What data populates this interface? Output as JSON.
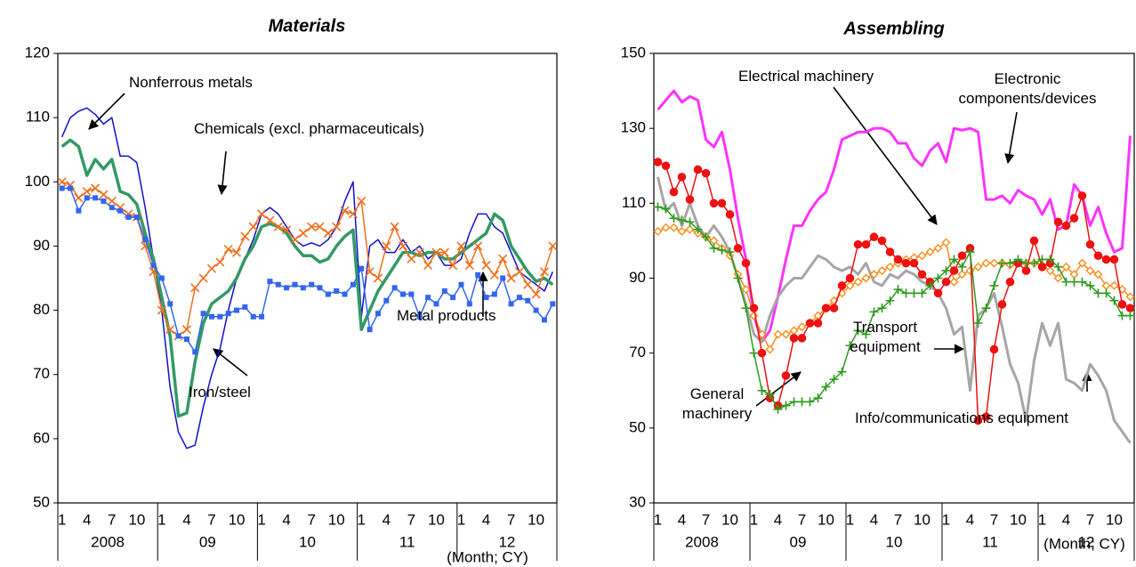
{
  "chart_data": [
    {
      "type": "line",
      "title": "Materials",
      "categories": [
        "1",
        null,
        null,
        "4",
        null,
        null,
        "7",
        null,
        null,
        "10",
        null,
        null,
        "1",
        null,
        null,
        "4",
        null,
        null,
        "7",
        null,
        null,
        "10",
        null,
        null,
        "1",
        null,
        null,
        "4",
        null,
        null,
        "7",
        null,
        null,
        "10",
        null,
        null,
        "1",
        null,
        null,
        "4",
        null,
        null,
        "7",
        null,
        null,
        "10",
        null,
        null,
        "1",
        null,
        null,
        "4",
        null,
        null,
        "7",
        null,
        null,
        "10",
        null,
        null
      ],
      "year_labels": [
        "2008",
        "09",
        "10",
        "11",
        "12"
      ],
      "note": "(Month; CY)",
      "ylim": [
        50,
        120
      ],
      "yticks": [
        50,
        60,
        70,
        80,
        90,
        100,
        110,
        120
      ],
      "series": [
        {
          "name": "Iron/steel",
          "color": "#1010cc",
          "line_width": 1.5,
          "marker": "none",
          "values": [
            107,
            110,
            111,
            111.5,
            110.5,
            109,
            110,
            104,
            104,
            103,
            96,
            88,
            80,
            68,
            61,
            58.5,
            59,
            65,
            70,
            74,
            80,
            85,
            88,
            91,
            95,
            96,
            95,
            93,
            91,
            90,
            90.5,
            90,
            91,
            93,
            97,
            100,
            79,
            90,
            91,
            89,
            89,
            91,
            89,
            90,
            88,
            89,
            87,
            87,
            88,
            92,
            95,
            95,
            93,
            92,
            89,
            86,
            85,
            84,
            83,
            86
          ]
        },
        {
          "name": "Nonferrous metals",
          "color": "#339966",
          "line_width": 3.5,
          "marker": "none",
          "values": [
            105.5,
            106.5,
            105.5,
            101,
            103.5,
            102,
            103.5,
            98.5,
            98,
            96.5,
            92,
            88,
            82,
            76,
            63.5,
            64,
            72,
            78,
            81,
            82,
            83,
            85,
            88,
            90,
            93,
            93.5,
            93,
            92,
            90,
            88.5,
            88.5,
            87.5,
            88,
            90,
            91.5,
            92.5,
            77,
            80,
            83,
            85,
            87,
            89,
            89,
            88.5,
            89,
            89,
            88,
            88,
            89,
            90,
            91,
            92,
            95,
            94,
            90,
            88,
            86,
            84.5,
            85,
            84
          ]
        },
        {
          "name": "Chemicals (excl. pharmaceuticals)",
          "color": "#f07020",
          "line_width": 1.5,
          "marker": "x",
          "values": [
            100,
            99.5,
            97.5,
            98.5,
            99,
            98,
            97,
            96,
            95,
            94.5,
            90,
            86,
            80,
            77,
            76,
            77,
            83.5,
            85,
            86.5,
            87.5,
            89.5,
            89,
            91.5,
            93,
            95,
            94,
            93,
            92.5,
            91,
            92,
            93,
            93,
            92,
            93,
            95.5,
            95,
            97,
            86,
            85,
            90,
            93,
            90,
            88,
            89,
            87,
            89,
            89,
            87,
            90,
            87,
            90,
            87,
            85.5,
            88,
            85,
            86,
            84,
            82.5,
            86,
            90
          ]
        },
        {
          "name": "Metal products",
          "color": "#3366ee",
          "line_width": 1.5,
          "marker": "square",
          "values": [
            99,
            99,
            95.5,
            97.5,
            97.5,
            97,
            96,
            95.5,
            94.5,
            94.5,
            91,
            87,
            85,
            81,
            76,
            75.5,
            73.5,
            79.5,
            79,
            79,
            79.5,
            80,
            80.5,
            79,
            79,
            84.5,
            84,
            83.5,
            84,
            83.5,
            84,
            83.5,
            82.5,
            83,
            82.5,
            84,
            86.5,
            77,
            79.5,
            81.5,
            83.5,
            82.5,
            82.5,
            79,
            82,
            81,
            83,
            82,
            84,
            81,
            85.5,
            82,
            82.5,
            85,
            81,
            82,
            81.5,
            80,
            78.5,
            81
          ]
        }
      ]
    },
    {
      "type": "line",
      "title": "Assembling",
      "categories": [
        "1",
        null,
        null,
        "4",
        null,
        null,
        "7",
        null,
        null,
        "10",
        null,
        null,
        "1",
        null,
        null,
        "4",
        null,
        null,
        "7",
        null,
        null,
        "10",
        null,
        null,
        "1",
        null,
        null,
        "4",
        null,
        null,
        "7",
        null,
        null,
        "10",
        null,
        null,
        "1",
        null,
        null,
        "4",
        null,
        null,
        "7",
        null,
        null,
        "10",
        null,
        null,
        "1",
        null,
        null,
        "4",
        null,
        null,
        "7",
        null,
        null,
        "10",
        null,
        null
      ],
      "year_labels": [
        "2008",
        "09",
        "10",
        "11",
        "12"
      ],
      "note": "(Month; CY)",
      "ylim": [
        30,
        150
      ],
      "yticks": [
        30,
        50,
        70,
        90,
        110,
        130,
        150
      ],
      "series": [
        {
          "name": "Electronic components/devices",
          "color": "#ff33ff",
          "line_width": 3,
          "marker": "none",
          "values": [
            135,
            137.5,
            140,
            137,
            138.5,
            137.5,
            127,
            125,
            129,
            119,
            106,
            95,
            80,
            73,
            76,
            85,
            95,
            104,
            104,
            108,
            111,
            113,
            119,
            127,
            128,
            129,
            129,
            130,
            130,
            129,
            126,
            126,
            122,
            120,
            124,
            126,
            121,
            130,
            129.5,
            130,
            129,
            111,
            111,
            112,
            110,
            113.5,
            112,
            111,
            107,
            111,
            103,
            104,
            115,
            112,
            104,
            109,
            102,
            97,
            98,
            128
          ]
        },
        {
          "name": "Info/communications equipment",
          "color": "#a6a6a6",
          "line_width": 3,
          "marker": "none",
          "values": [
            117,
            108,
            110,
            104,
            110,
            104,
            101,
            104,
            101,
            97,
            90,
            83,
            75,
            73,
            80,
            85,
            88,
            90,
            90,
            93,
            96,
            95,
            93,
            92,
            93,
            91,
            94,
            89,
            88,
            91,
            90,
            92,
            91,
            89,
            88,
            86,
            82,
            75,
            77,
            60,
            80,
            82,
            86,
            77,
            67,
            62,
            52,
            68,
            78,
            72,
            78,
            63,
            62,
            60,
            67,
            64,
            60,
            52,
            49,
            46
          ]
        },
        {
          "name": "Electrical machinery",
          "color": "#ff8c1a",
          "line_width": 1.5,
          "marker": "diamond",
          "values": [
            102.5,
            103.5,
            103.5,
            102.5,
            103,
            102,
            101,
            100,
            98,
            96,
            91,
            87,
            80,
            75,
            71,
            75,
            75,
            76,
            77,
            78,
            80,
            82,
            84,
            86,
            88,
            89,
            90,
            91,
            92,
            93,
            94,
            95,
            95.5,
            96,
            97,
            98,
            99.5,
            89,
            91,
            92,
            93,
            94,
            94,
            94,
            93.5,
            94,
            94,
            94,
            93.5,
            92,
            90,
            93,
            91,
            94,
            92,
            91,
            88,
            88,
            87,
            85
          ]
        },
        {
          "name": "Transport equipment",
          "color": "#ee1111",
          "line_width": 1.5,
          "marker": "circle",
          "values": [
            121,
            120,
            113,
            117,
            111,
            119,
            118,
            110,
            110,
            107,
            98,
            94,
            82,
            70,
            58,
            56,
            64,
            74,
            74,
            78,
            78,
            82,
            82,
            88,
            90,
            99,
            99,
            101,
            100,
            97,
            95,
            94,
            94,
            91,
            89,
            86,
            89,
            92,
            96,
            98,
            52,
            53,
            71,
            83,
            89,
            94,
            92,
            100,
            93,
            94,
            105,
            104,
            106,
            112,
            99,
            96,
            95,
            95,
            83,
            82
          ]
        },
        {
          "name": "General machinery",
          "color": "#2e9a1e",
          "line_width": 1.5,
          "marker": "plus",
          "values": [
            109,
            108.5,
            106,
            105.5,
            105,
            103,
            101,
            98,
            97.5,
            97,
            90,
            82,
            70,
            60,
            59,
            55,
            56,
            57,
            57,
            57,
            58,
            61,
            63,
            65,
            72,
            76,
            75,
            81,
            82,
            84,
            87,
            86,
            86,
            86,
            88,
            90,
            92,
            95,
            93,
            97,
            78,
            82,
            88,
            94,
            94,
            95,
            94,
            94,
            95,
            95,
            93,
            89,
            89,
            89,
            88,
            86,
            86,
            84,
            80,
            80
          ]
        }
      ]
    }
  ]
}
